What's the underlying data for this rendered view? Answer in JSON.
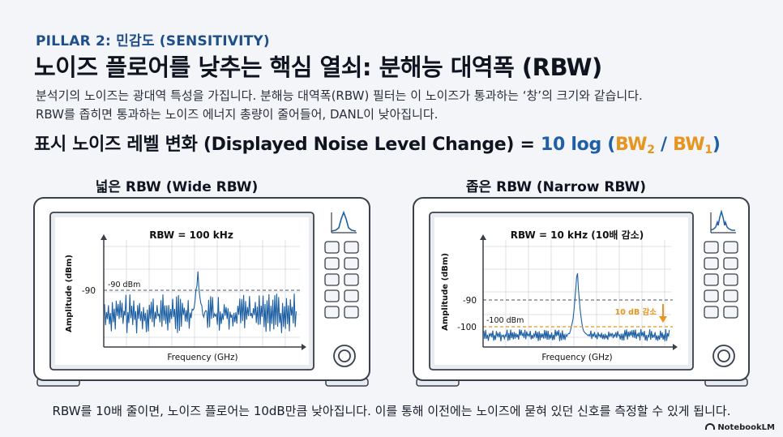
{
  "header": {
    "pillar": "PILLAR 2: 민감도 (SENSITIVITY)",
    "title": "노이즈 플로어를 낮추는 핵심 열쇠: 분해능 대역폭 (RBW)",
    "desc_line1": "분석기의 노이즈는 광대역 특성을 가집니다. 분해능 대역폭(RBW) 필터는 이 노이즈가 통과하는 ‘창’의 크기와 같습니다.",
    "desc_line2": "RBW를 좁히면 통과하는 노이즈 에너지 총량이 줄어들어, DANL이 낮아집니다."
  },
  "formula": {
    "label": "표시 노이즈 레벨 변화 (Displayed Noise Level Change) = ",
    "log": "10 log (",
    "bw": "BW",
    "sub2": "2",
    "slash": " / ",
    "sub1": "1",
    "close": ")"
  },
  "panels": {
    "wide": {
      "caption": "넓은 RBW (Wide RBW)",
      "rbw_label": "RBW = 100 kHz",
      "ylabel": "Amplitude (dBm)",
      "xlabel": "Frequency (GHz)",
      "tick_90": "-90",
      "level_label": "-90 dBm"
    },
    "narrow": {
      "caption": "좁은 RBW (Narrow RBW)",
      "rbw_label": "RBW = 10 kHz (10배 감소)",
      "ylabel": "Amplitude (dBm)",
      "xlabel": "Frequency (GHz)",
      "tick_90": "-90",
      "tick_100": "-100",
      "level_label": "-100 dBm",
      "reduction_label": "10 dB 감소"
    }
  },
  "footer": "RBW를 10배 줄이면, 노이즈 플로어는 10dB만큼 낮아집니다. 이를 통해 이전에는 노이즈에 묻혀 있던 신호를 측정할 수 있게 됩니다.",
  "brand": "NotebookLM",
  "colors": {
    "accent_blue": "#1f5fa8",
    "accent_orange": "#e7951e",
    "trace": "#1d5fa3"
  }
}
